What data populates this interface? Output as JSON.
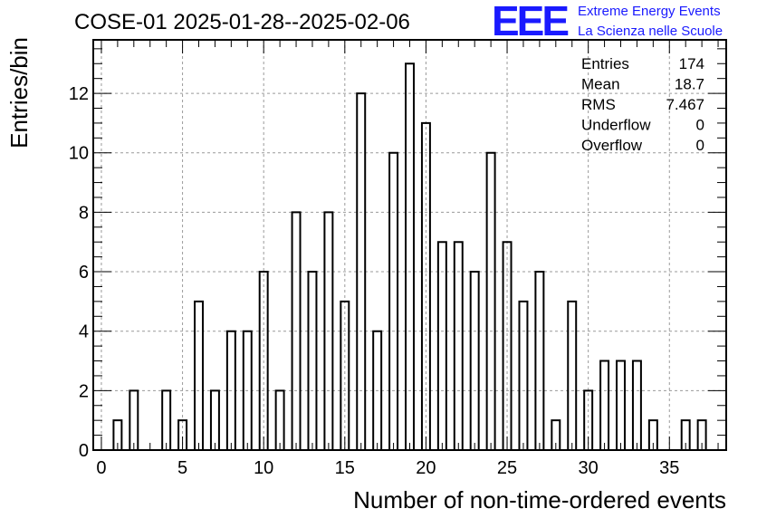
{
  "header": {
    "title": "COSE-01 2025-01-28--2025-02-06",
    "logo_text": "EEE",
    "brand_line1": "Extreme Energy Events",
    "brand_line2": "La Scienza nelle Scuole",
    "brand_color": "#1a1aff"
  },
  "stats": [
    {
      "label": "Entries",
      "value": "174"
    },
    {
      "label": "Mean",
      "value": "18.7"
    },
    {
      "label": "RMS",
      "value": "7.467"
    },
    {
      "label": "Underflow",
      "value": "0"
    },
    {
      "label": "Overflow",
      "value": "0"
    }
  ],
  "chart_data": {
    "type": "bar",
    "histogram": true,
    "title": "COSE-01 2025-01-28--2025-02-06",
    "xlabel": "Number of non-time-ordered events",
    "ylabel": "Entries/bin",
    "xlim": [
      -0.5,
      38.5
    ],
    "ylim": [
      0,
      13.8
    ],
    "grid": true,
    "bin_width": 1,
    "bars_per_bin": 0.5,
    "xticks": [
      0,
      5,
      10,
      15,
      20,
      25,
      30,
      35
    ],
    "yticks": [
      0,
      2,
      4,
      6,
      8,
      10,
      12
    ],
    "x": [
      1,
      2,
      4,
      5,
      6,
      7,
      8,
      9,
      10,
      11,
      12,
      13,
      14,
      15,
      16,
      17,
      18,
      19,
      20,
      21,
      22,
      23,
      24,
      25,
      26,
      27,
      28,
      29,
      30,
      31,
      32,
      33,
      34,
      36,
      37
    ],
    "values": [
      1,
      2,
      2,
      1,
      5,
      2,
      4,
      4,
      6,
      2,
      8,
      6,
      8,
      5,
      12,
      4,
      10,
      13,
      11,
      7,
      7,
      6,
      10,
      7,
      5,
      6,
      1,
      5,
      2,
      3,
      3,
      3,
      1,
      1,
      1
    ]
  }
}
